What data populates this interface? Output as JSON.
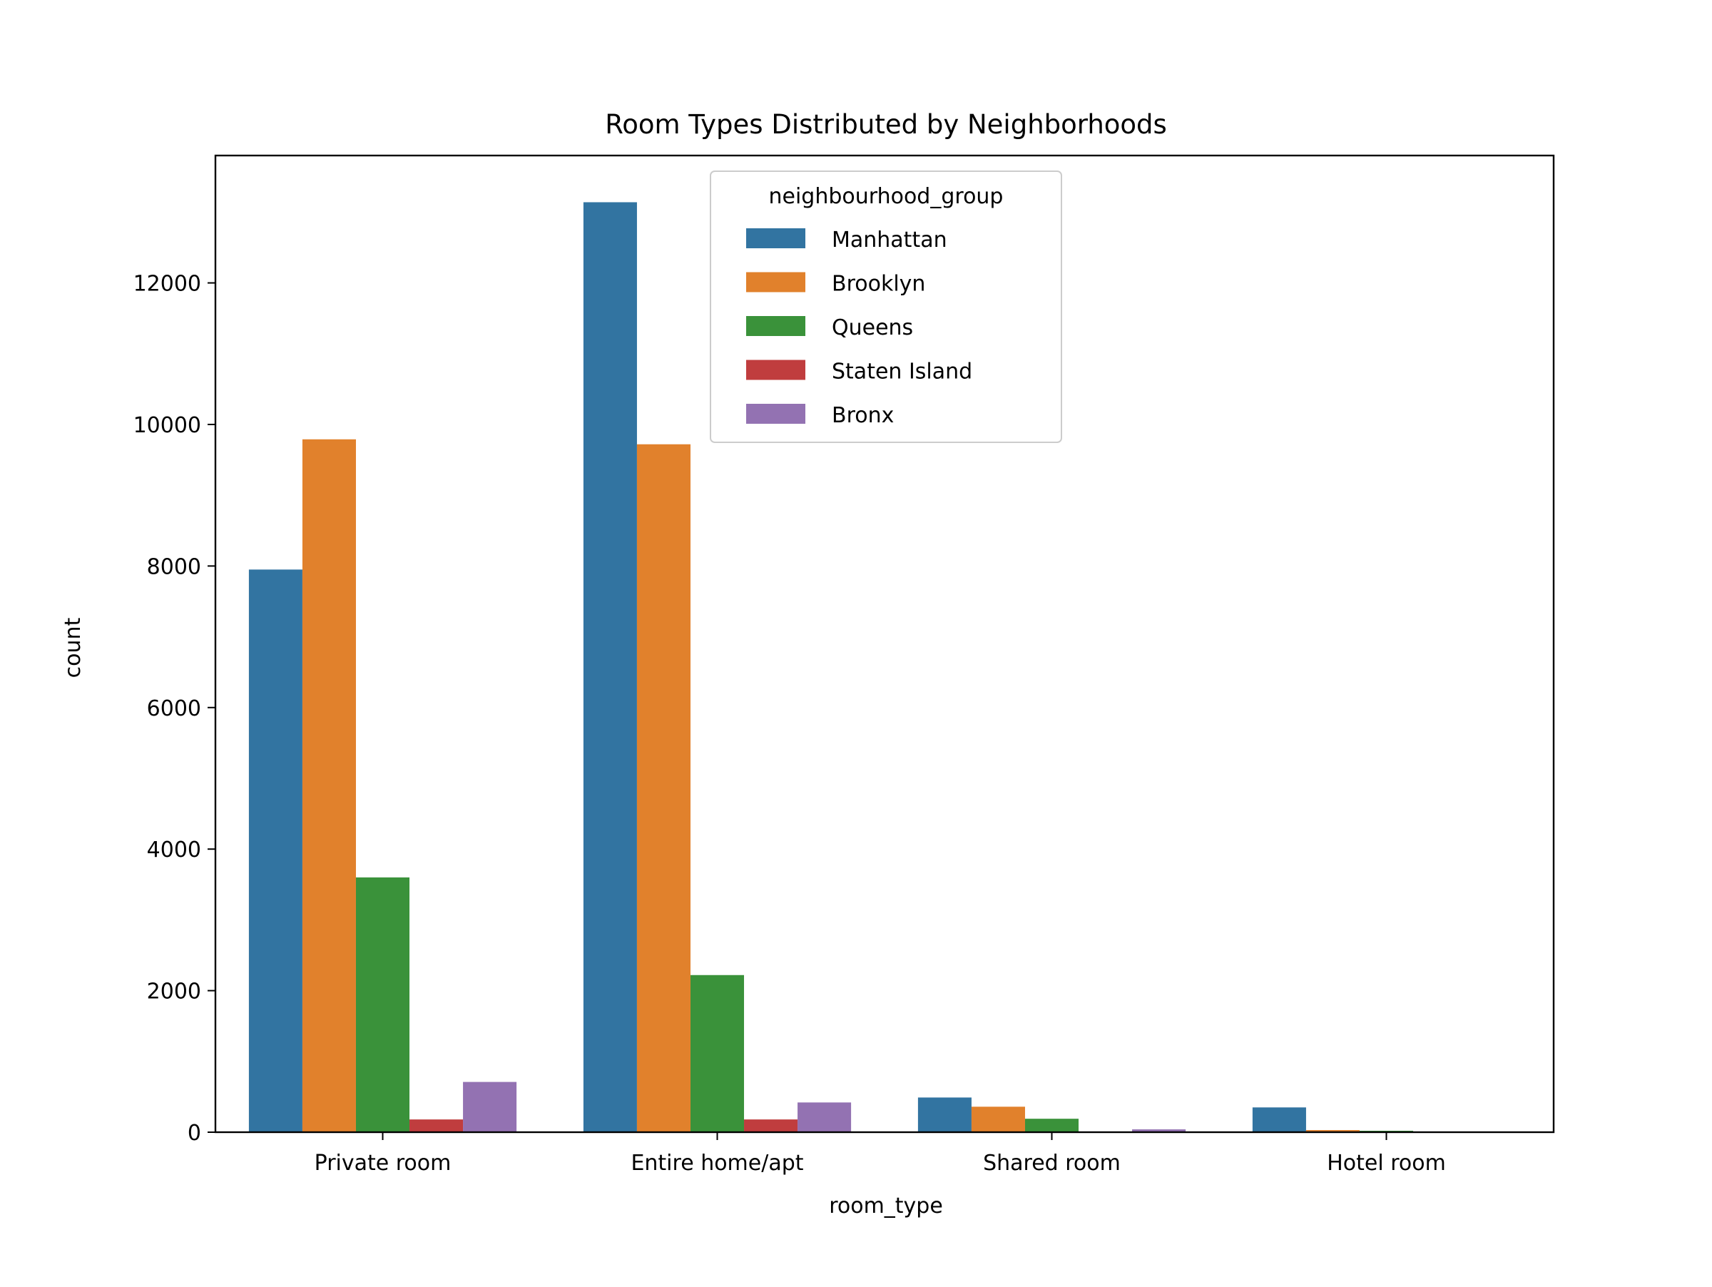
{
  "chart_data": {
    "type": "bar",
    "title": "Room Types Distributed by Neighborhoods",
    "xlabel": "room_type",
    "ylabel": "count",
    "categories": [
      "Private room",
      "Entire home/apt",
      "Shared room",
      "Hotel room"
    ],
    "series": [
      {
        "name": "Manhattan",
        "values": [
          7950,
          13140,
          490,
          350
        ]
      },
      {
        "name": "Brooklyn",
        "values": [
          9790,
          9720,
          360,
          30
        ]
      },
      {
        "name": "Queens",
        "values": [
          3600,
          2220,
          190,
          20
        ]
      },
      {
        "name": "Staten Island",
        "values": [
          180,
          180,
          5,
          0
        ]
      },
      {
        "name": "Bronx",
        "values": [
          710,
          420,
          40,
          0
        ]
      }
    ],
    "ylim": [
      0,
      13800
    ],
    "yticks": [
      0,
      2000,
      4000,
      6000,
      8000,
      10000,
      12000
    ],
    "grid": false,
    "legend": {
      "title": "neighbourhood_group",
      "placement": "upper center"
    }
  },
  "colors": {
    "Manhattan": "#3274a1",
    "Brooklyn": "#e1812c",
    "Queens": "#3a923a",
    "Staten Island": "#c03d3e",
    "Bronx": "#9372b2"
  }
}
